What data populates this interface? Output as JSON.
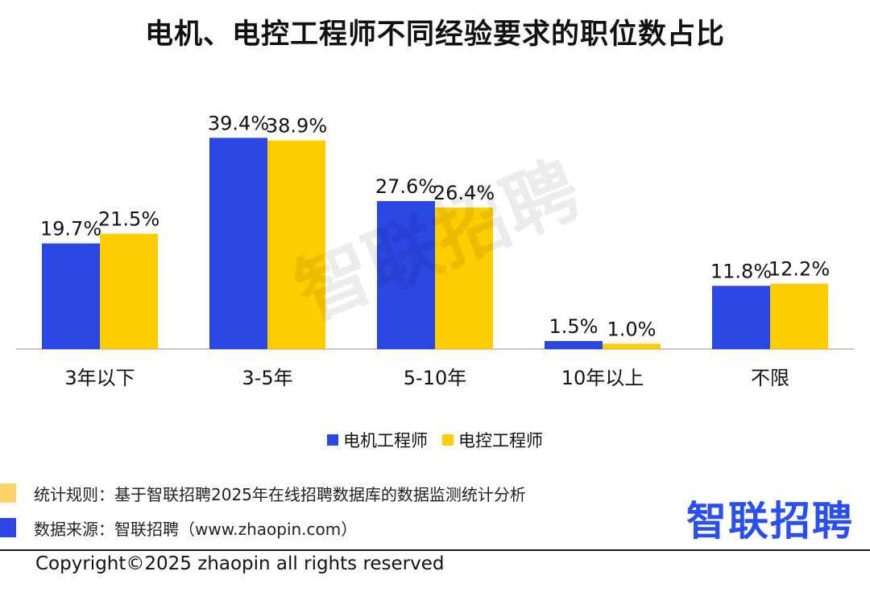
{
  "chart_data": {
    "type": "bar",
    "title": "电机、电控工程师不同经验要求的职位数占比",
    "categories": [
      "3年以下",
      "3-5年",
      "5-10年",
      "10年以上",
      "不限"
    ],
    "series": [
      {
        "name": "电机工程师",
        "values": [
          19.7,
          39.4,
          27.6,
          1.5,
          11.8
        ],
        "labels": [
          "19.7%",
          "39.4%",
          "27.6%",
          "1.5%",
          "11.8%"
        ],
        "color": "#2b48e3"
      },
      {
        "name": "电控工程师",
        "values": [
          21.5,
          38.9,
          26.4,
          1.0,
          12.2
        ],
        "labels": [
          "21.5%",
          "38.9%",
          "26.4%",
          "1.0%",
          "12.2%"
        ],
        "color": "#fdcd00"
      }
    ],
    "ylim": [
      0,
      45
    ],
    "grid": false,
    "legend_position": "bottom"
  },
  "watermark": "智联招聘",
  "footer": {
    "rule_text": "统计规则：基于智联招聘2025年在线招聘数据库的数据监测统计分析",
    "rule_color": "#fdd46a",
    "source_text": "数据来源：智联招聘（www.zhaopin.com）",
    "source_color": "#2b48e3",
    "logo": "智联招聘",
    "copyright": "Copyright©2025 zhaopin all rights reserved"
  }
}
